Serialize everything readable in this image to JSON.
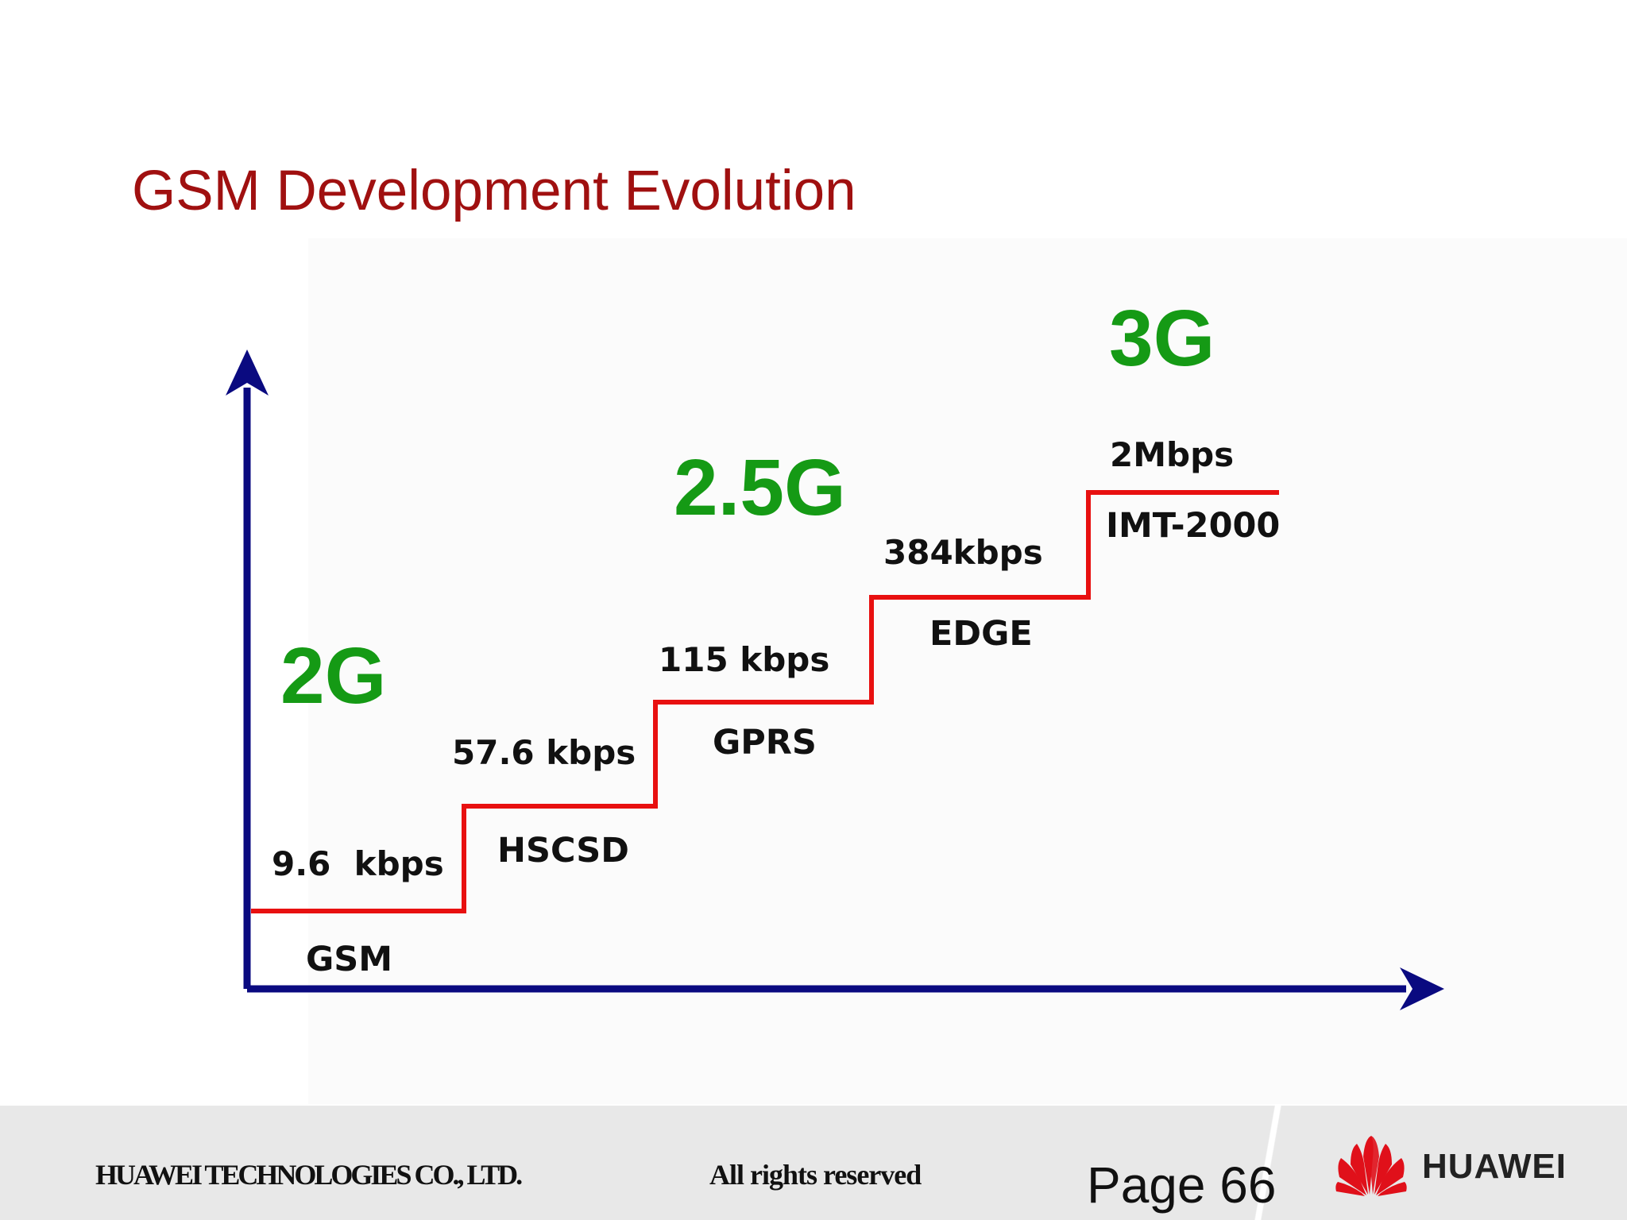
{
  "title": "GSM Development Evolution",
  "colors": {
    "title": "#a01010",
    "generation": "#159a15",
    "steps": "#e81010",
    "axes": "#0a0a80"
  },
  "generations": [
    {
      "id": "g2",
      "label": "2G"
    },
    {
      "id": "g25",
      "label": "2.5G"
    },
    {
      "id": "g3",
      "label": "3G"
    }
  ],
  "steps": [
    {
      "tech": "GSM",
      "speed": "9.6  kbps"
    },
    {
      "tech": "HSCSD",
      "speed": "57.6 kbps"
    },
    {
      "tech": "GPRS",
      "speed": "115 kbps"
    },
    {
      "tech": "EDGE",
      "speed": "384kbps"
    },
    {
      "tech": "IMT-2000",
      "speed": "2Mbps"
    }
  ],
  "footer": {
    "company": "HUAWEI TECHNOLOGIES CO., LTD.",
    "rights": "All rights reserved",
    "page": "Page 66",
    "logo_text": "HUAWEI",
    "logo_icon": "huawei-flower-icon"
  }
}
